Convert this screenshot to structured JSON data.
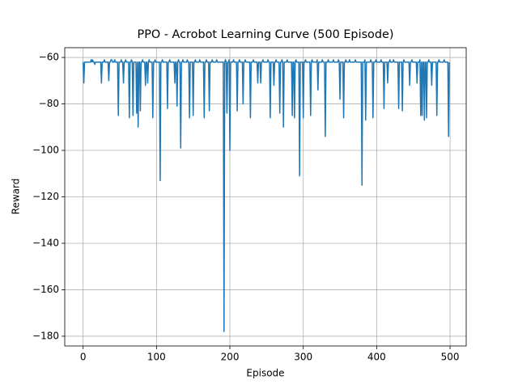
{
  "chart_data": {
    "type": "line",
    "title": "PPO - Acrobot Learning Curve (500 Episode)",
    "xlabel": "Episode",
    "ylabel": "Reward",
    "color": "#1f77b4",
    "grid": true,
    "xlim": [
      -25,
      522
    ],
    "ylim": [
      -184.2,
      -55.8
    ],
    "xticks": [
      0,
      100,
      200,
      300,
      400,
      500
    ],
    "yticks": [
      {
        "value": -180,
        "label": "−180"
      },
      {
        "value": -160,
        "label": "−160"
      },
      {
        "value": -140,
        "label": "−140"
      },
      {
        "value": -120,
        "label": "−120"
      },
      {
        "value": -100,
        "label": "−100"
      },
      {
        "value": -80,
        "label": "−80"
      },
      {
        "value": -60,
        "label": "−60"
      }
    ],
    "x": [
      0,
      1,
      2,
      3,
      4,
      5,
      6,
      7,
      8,
      9,
      10,
      11,
      12,
      13,
      14,
      15,
      16,
      17,
      18,
      19,
      20,
      21,
      22,
      23,
      24,
      25,
      26,
      27,
      28,
      29,
      30,
      31,
      32,
      33,
      34,
      35,
      36,
      37,
      38,
      39,
      40,
      41,
      42,
      43,
      44,
      45,
      46,
      47,
      48,
      49,
      50,
      51,
      52,
      53,
      54,
      55,
      56,
      57,
      58,
      59,
      60,
      61,
      62,
      63,
      64,
      65,
      66,
      67,
      68,
      69,
      70,
      71,
      72,
      73,
      74,
      75,
      76,
      77,
      78,
      79,
      80,
      81,
      82,
      83,
      84,
      85,
      86,
      87,
      88,
      89,
      90,
      91,
      92,
      93,
      94,
      95,
      96,
      97,
      98,
      99,
      100,
      101,
      102,
      103,
      104,
      105,
      106,
      107,
      108,
      109,
      110,
      111,
      112,
      113,
      114,
      115,
      116,
      117,
      118,
      119,
      120,
      121,
      122,
      123,
      124,
      125,
      126,
      127,
      128,
      129,
      130,
      131,
      132,
      133,
      134,
      135,
      136,
      137,
      138,
      139,
      140,
      141,
      142,
      143,
      144,
      145,
      146,
      147,
      148,
      149,
      150,
      151,
      152,
      153,
      154,
      155,
      156,
      157,
      158,
      159,
      160,
      161,
      162,
      163,
      164,
      165,
      166,
      167,
      168,
      169,
      170,
      171,
      172,
      173,
      174,
      175,
      176,
      177,
      178,
      179,
      180,
      181,
      182,
      183,
      184,
      185,
      186,
      187,
      188,
      189,
      190,
      191,
      192,
      193,
      194,
      195,
      196,
      197,
      198,
      199,
      200,
      201,
      202,
      203,
      204,
      205,
      206,
      207,
      208,
      209,
      210,
      211,
      212,
      213,
      214,
      215,
      216,
      217,
      218,
      219,
      220,
      221,
      222,
      223,
      224,
      225,
      226,
      227,
      228,
      229,
      230,
      231,
      232,
      233,
      234,
      235,
      236,
      237,
      238,
      239,
      240,
      241,
      242,
      243,
      244,
      245,
      246,
      247,
      248,
      249,
      250,
      251,
      252,
      253,
      254,
      255,
      256,
      257,
      258,
      259,
      260,
      261,
      262,
      263,
      264,
      265,
      266,
      267,
      268,
      269,
      270,
      271,
      272,
      273,
      274,
      275,
      276,
      277,
      278,
      279,
      280,
      281,
      282,
      283,
      284,
      285,
      286,
      287,
      288,
      289,
      290,
      291,
      292,
      293,
      294,
      295,
      296,
      297,
      298,
      299,
      300,
      301,
      302,
      303,
      304,
      305,
      306,
      307,
      308,
      309,
      310,
      311,
      312,
      313,
      314,
      315,
      316,
      317,
      318,
      319,
      320,
      321,
      322,
      323,
      324,
      325,
      326,
      327,
      328,
      329,
      330,
      331,
      332,
      333,
      334,
      335,
      336,
      337,
      338,
      339,
      340,
      341,
      342,
      343,
      344,
      345,
      346,
      347,
      348,
      349,
      350,
      351,
      352,
      353,
      354,
      355,
      356,
      357,
      358,
      359,
      360,
      361,
      362,
      363,
      364,
      365,
      366,
      367,
      368,
      369,
      370,
      371,
      372,
      373,
      374,
      375,
      376,
      377,
      378,
      379,
      380,
      381,
      382,
      383,
      384,
      385,
      386,
      387,
      388,
      389,
      390,
      391,
      392,
      393,
      394,
      395,
      396,
      397,
      398,
      399,
      400,
      401,
      402,
      403,
      404,
      405,
      406,
      407,
      408,
      409,
      410,
      411,
      412,
      413,
      414,
      415,
      416,
      417,
      418,
      419,
      420,
      421,
      422,
      423,
      424,
      425,
      426,
      427,
      428,
      429,
      430,
      431,
      432,
      433,
      434,
      435,
      436,
      437,
      438,
      439,
      440,
      441,
      442,
      443,
      444,
      445,
      446,
      447,
      448,
      449,
      450,
      451,
      452,
      453,
      454,
      455,
      456,
      457,
      458,
      459,
      460,
      461,
      462,
      463,
      464,
      465,
      466,
      467,
      468,
      469,
      470,
      471,
      472,
      473,
      474,
      475,
      476,
      477,
      478,
      479,
      480,
      481,
      482,
      483,
      484,
      485,
      486,
      487,
      488,
      489,
      490,
      491,
      492,
      493,
      494,
      495,
      496,
      497,
      498,
      499
    ],
    "values": [
      -62,
      -71,
      -62,
      -62,
      -62,
      -62,
      -62,
      -62,
      -62,
      -62,
      -62,
      -61,
      -62,
      -61,
      -62,
      -62,
      -63,
      -62,
      -62,
      -62,
      -62,
      -62,
      -62,
      -62,
      -62,
      -71,
      -62,
      -62,
      -62,
      -61,
      -62,
      -62,
      -62,
      -62,
      -62,
      -70,
      -62,
      -62,
      -61,
      -61,
      -62,
      -62,
      -62,
      -61,
      -62,
      -62,
      -62,
      -62,
      -85,
      -62,
      -62,
      -62,
      -61,
      -62,
      -62,
      -71,
      -62,
      -62,
      -61,
      -62,
      -62,
      -62,
      -62,
      -86,
      -62,
      -62,
      -61,
      -62,
      -85,
      -62,
      -62,
      -62,
      -62,
      -84,
      -62,
      -90,
      -62,
      -62,
      -83,
      -62,
      -62,
      -61,
      -62,
      -62,
      -62,
      -72,
      -62,
      -62,
      -71,
      -62,
      -61,
      -62,
      -62,
      -62,
      -62,
      -86,
      -62,
      -62,
      -61,
      -62,
      -62,
      -62,
      -62,
      -62,
      -62,
      -113,
      -62,
      -62,
      -61,
      -62,
      -62,
      -62,
      -62,
      -62,
      -62,
      -82,
      -62,
      -62,
      -61,
      -62,
      -62,
      -62,
      -62,
      -62,
      -62,
      -71,
      -62,
      -62,
      -81,
      -62,
      -61,
      -62,
      -62,
      -99,
      -62,
      -62,
      -61,
      -62,
      -62,
      -62,
      -62,
      -62,
      -61,
      -62,
      -62,
      -86,
      -62,
      -62,
      -62,
      -62,
      -85,
      -62,
      -62,
      -61,
      -62,
      -62,
      -62,
      -62,
      -62,
      -61,
      -62,
      -62,
      -62,
      -62,
      -62,
      -86,
      -62,
      -62,
      -61,
      -62,
      -62,
      -62,
      -83,
      -62,
      -62,
      -62,
      -61,
      -62,
      -62,
      -62,
      -62,
      -62,
      -61,
      -62,
      -62,
      -62,
      -62,
      -62,
      -62,
      -62,
      -62,
      -62,
      -178,
      -62,
      -61,
      -62,
      -84,
      -62,
      -62,
      -61,
      -100,
      -62,
      -62,
      -62,
      -62,
      -61,
      -62,
      -62,
      -62,
      -62,
      -83,
      -62,
      -62,
      -61,
      -62,
      -62,
      -62,
      -62,
      -80,
      -62,
      -62,
      -61,
      -62,
      -62,
      -62,
      -62,
      -62,
      -62,
      -86,
      -62,
      -62,
      -62,
      -61,
      -62,
      -62,
      -62,
      -62,
      -62,
      -71,
      -62,
      -62,
      -62,
      -71,
      -62,
      -62,
      -61,
      -62,
      -62,
      -62,
      -62,
      -62,
      -62,
      -61,
      -62,
      -62,
      -86,
      -62,
      -62,
      -62,
      -62,
      -72,
      -62,
      -62,
      -61,
      -62,
      -62,
      -62,
      -62,
      -84,
      -62,
      -62,
      -61,
      -62,
      -90,
      -62,
      -62,
      -62,
      -62,
      -61,
      -62,
      -62,
      -62,
      -62,
      -62,
      -62,
      -85,
      -62,
      -62,
      -86,
      -62,
      -61,
      -62,
      -62,
      -62,
      -62,
      -111,
      -62,
      -62,
      -62,
      -62,
      -86,
      -62,
      -62,
      -61,
      -62,
      -62,
      -62,
      -62,
      -62,
      -62,
      -85,
      -62,
      -61,
      -62,
      -62,
      -62,
      -62,
      -62,
      -62,
      -61,
      -74,
      -62,
      -62,
      -62,
      -62,
      -62,
      -61,
      -62,
      -62,
      -62,
      -94,
      -62,
      -62,
      -62,
      -61,
      -62,
      -62,
      -62,
      -62,
      -62,
      -62,
      -61,
      -62,
      -62,
      -62,
      -62,
      -62,
      -62,
      -61,
      -62,
      -78,
      -62,
      -62,
      -62,
      -62,
      -86,
      -62,
      -62,
      -61,
      -62,
      -62,
      -62,
      -62,
      -61,
      -62,
      -62,
      -62,
      -62,
      -62,
      -62,
      -62,
      -61,
      -62,
      -62,
      -62,
      -62,
      -62,
      -62,
      -62,
      -62,
      -115,
      -62,
      -62,
      -62,
      -61,
      -87,
      -62,
      -62,
      -62,
      -62,
      -62,
      -62,
      -61,
      -62,
      -62,
      -86,
      -62,
      -62,
      -62,
      -61,
      -62,
      -62,
      -62,
      -62,
      -62,
      -62,
      -61,
      -62,
      -62,
      -62,
      -82,
      -62,
      -62,
      -62,
      -62,
      -71,
      -62,
      -62,
      -61,
      -62,
      -62,
      -62,
      -62,
      -61,
      -62,
      -62,
      -62,
      -62,
      -62,
      -62,
      -82,
      -62,
      -62,
      -62,
      -62,
      -83,
      -62,
      -61,
      -62,
      -62,
      -62,
      -62,
      -62,
      -62,
      -62,
      -72,
      -62,
      -62,
      -61,
      -62,
      -62,
      -62,
      -62,
      -62,
      -62,
      -71,
      -62,
      -62,
      -62,
      -61,
      -85,
      -62,
      -85,
      -62,
      -62,
      -87,
      -62,
      -62,
      -86,
      -62,
      -62,
      -61,
      -62,
      -62,
      -62,
      -72,
      -62,
      -62,
      -62,
      -62,
      -62,
      -62,
      -85,
      -62,
      -62,
      -61,
      -62,
      -62,
      -62,
      -62,
      -62,
      -62,
      -61,
      -62,
      -62,
      -62,
      -62,
      -62,
      -94,
      -62
    ]
  }
}
